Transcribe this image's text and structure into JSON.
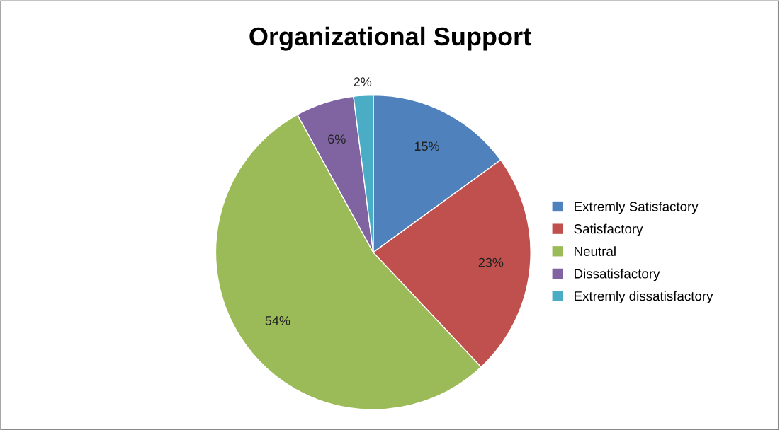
{
  "chart_data": {
    "type": "pie",
    "title": "Organizational Support",
    "categories": [
      "Extremly Satisfactory",
      "Satisfactory",
      "Neutral",
      "Dissatisfactory",
      "Extremly dissatisfactory"
    ],
    "values": [
      15,
      23,
      54,
      6,
      2
    ],
    "colors": [
      "#4f81bd",
      "#c0504d",
      "#9bbb59",
      "#8064a2",
      "#4bacc6"
    ],
    "value_labels": [
      "15%",
      "23%",
      "54%",
      "6%",
      "2%"
    ],
    "legend": "right"
  }
}
